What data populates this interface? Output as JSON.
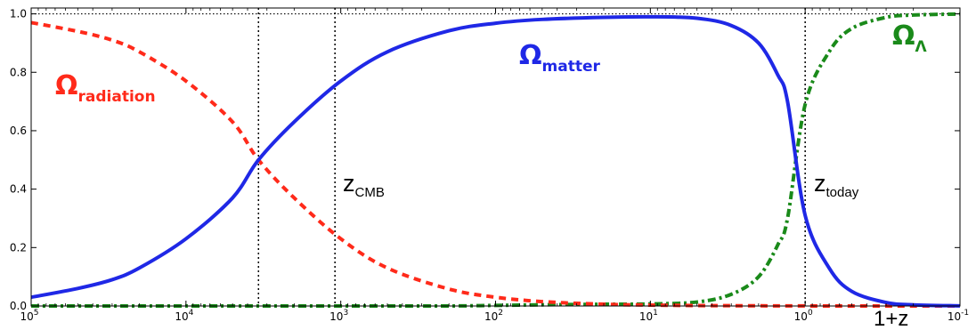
{
  "chart_data": {
    "type": "line",
    "title": "",
    "xlabel": "1+z",
    "ylabel": "",
    "x_scale": "log",
    "x_reversed": true,
    "xlim": [
      100000,
      0.1
    ],
    "ylim": [
      0,
      1.02
    ],
    "grid": false,
    "x_ticks": [
      {
        "base": "10",
        "exp": "5",
        "value": 100000
      },
      {
        "base": "10",
        "exp": "4",
        "value": 10000
      },
      {
        "base": "10",
        "exp": "3",
        "value": 1000
      },
      {
        "base": "10",
        "exp": "2",
        "value": 100
      },
      {
        "base": "10",
        "exp": "1",
        "value": 10
      },
      {
        "base": "10",
        "exp": "0",
        "value": 1
      },
      {
        "base": "10",
        "exp": "-1",
        "value": 0.1
      }
    ],
    "y_ticks": [
      "0.0",
      "0.2",
      "0.4",
      "0.6",
      "0.8",
      "1.0"
    ],
    "x": [
      100000,
      50000,
      30000,
      20000,
      10000,
      5000,
      3400,
      2000,
      1000,
      500,
      200,
      100,
      50,
      20,
      10,
      5,
      3,
      2,
      1.5,
      1.3,
      1.0,
      0.7,
      0.5,
      0.3,
      0.2,
      0.1
    ],
    "series": [
      {
        "name": "radiation",
        "color": "#ff2a1a",
        "style": "dashed",
        "values": [
          0.97,
          0.94,
          0.91,
          0.87,
          0.77,
          0.63,
          0.5,
          0.37,
          0.23,
          0.13,
          0.058,
          0.03,
          0.015,
          0.006,
          0.003,
          0.0015,
          0.001,
          0.0006,
          0.0004,
          0.0003,
          0.0002,
          0.0001,
          0.0,
          0.0,
          0.0,
          0.0
        ]
      },
      {
        "name": "matter",
        "color": "#1f28e6",
        "style": "solid",
        "values": [
          0.03,
          0.06,
          0.09,
          0.13,
          0.23,
          0.37,
          0.5,
          0.63,
          0.77,
          0.87,
          0.942,
          0.968,
          0.981,
          0.988,
          0.99,
          0.985,
          0.96,
          0.9,
          0.79,
          0.7,
          0.31,
          0.13,
          0.05,
          0.012,
          0.004,
          0.0005
        ]
      },
      {
        "name": "Λ",
        "color": "#1a8a1a",
        "style": "dashdot",
        "values": [
          0.0,
          0.0,
          0.0,
          0.0,
          0.0,
          0.0,
          0.0,
          0.0,
          0.0,
          0.0,
          0.0,
          0.002,
          0.004,
          0.006,
          0.007,
          0.0135,
          0.04,
          0.1,
          0.21,
          0.3,
          0.69,
          0.87,
          0.95,
          0.988,
          0.996,
          0.9995
        ]
      }
    ],
    "vlines": [
      {
        "value": 3400,
        "label": ""
      },
      {
        "value": 1090,
        "label_base": "z",
        "label_sub": "CMB"
      },
      {
        "value": 1,
        "label_base": "z",
        "label_sub": "today"
      }
    ],
    "hlines": [
      1.0
    ],
    "annotations": [
      {
        "symbol": "Ω",
        "sub": "radiation",
        "color": "#ff2a1a"
      },
      {
        "symbol": "Ω",
        "sub": "matter",
        "color": "#1f28e6"
      },
      {
        "symbol": "Ω",
        "sub": "Λ",
        "color": "#1a8a1a"
      }
    ]
  }
}
